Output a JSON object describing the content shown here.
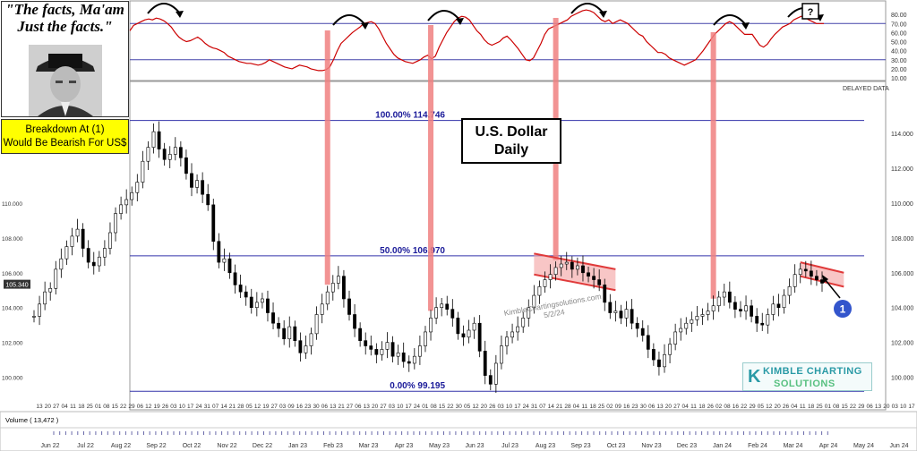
{
  "panel": {
    "title_line1": "\"The facts, Ma'am",
    "title_line2": "Just the facts.\"",
    "photo": "man-in-fedora-portrait",
    "note_line1": "Breakdown At (1)",
    "note_line2": "Would Be Bearish For US$",
    "note_color": "#ffff00"
  },
  "chart_title": {
    "line1": "U.S. Dollar",
    "line2": "Daily"
  },
  "delayed_label": "DELAYED DATA",
  "watermark": {
    "line1": "KimbleChartingsolutions.com",
    "line2": "5/2/24"
  },
  "logo": {
    "line1": "KIMBLE CHARTING",
    "line2": "SOLUTIONS",
    "mark": "K"
  },
  "volume_label": "Volume ( 13,472 )",
  "colors": {
    "price": "#000000",
    "indicator": "#cc0000",
    "fib": "#3333aa",
    "highlight": "#f08080",
    "marker": "#3355cc"
  },
  "chart_data": [
    {
      "type": "line",
      "panel": "momentum-indicator",
      "ylim": [
        10,
        90
      ],
      "y_ticks": [
        "80.00",
        "70.00",
        "60.00",
        "50.00",
        "40.00",
        "30.00",
        "20.00",
        "10.00"
      ],
      "reference_lines": [
        70,
        30
      ],
      "series": [
        {
          "values": [
            62,
            68,
            70,
            72,
            74,
            75,
            74,
            76,
            75,
            73,
            70,
            66,
            60,
            55,
            52,
            50,
            51,
            53,
            55,
            52,
            48,
            45,
            43,
            42,
            40,
            38,
            34,
            32,
            30,
            28,
            27,
            26,
            26,
            25,
            24,
            25,
            27,
            30,
            28,
            26,
            24,
            22,
            21,
            20,
            22,
            24,
            23,
            22,
            20,
            19,
            18,
            18,
            19,
            22,
            30,
            40,
            48,
            52,
            56,
            60,
            63,
            66,
            70,
            71,
            72,
            70,
            64,
            56,
            48,
            42,
            36,
            32,
            30,
            28,
            27,
            26,
            28,
            30,
            33,
            35,
            31,
            34,
            44,
            52,
            60,
            66,
            72,
            76,
            78,
            77,
            74,
            68,
            62,
            58,
            52,
            48,
            46,
            48,
            50,
            54,
            56,
            52,
            47,
            42,
            36,
            30,
            29,
            32,
            40,
            48,
            58,
            64,
            66,
            68,
            70,
            72,
            74,
            78,
            80,
            82,
            84,
            85,
            84,
            82,
            78,
            74,
            72,
            74,
            70,
            72,
            74,
            72,
            70,
            66,
            62,
            58,
            56,
            50,
            46,
            42,
            38,
            38,
            36,
            32,
            30,
            28,
            26,
            24,
            26,
            28,
            30,
            35,
            40,
            46,
            52,
            58,
            62,
            66,
            70,
            72,
            70,
            66,
            62,
            58,
            58,
            58,
            52,
            46,
            44,
            47,
            53,
            58,
            62,
            66,
            68,
            70,
            74,
            76,
            78,
            77,
            74,
            72,
            70,
            70,
            70
          ]
        }
      ],
      "annotations": [
        "?"
      ]
    },
    {
      "type": "candlestick",
      "panel": "price",
      "title": "U.S. Dollar Daily",
      "ylim": [
        99,
        115.7
      ],
      "y_ticks": [
        "114.000",
        "112.000",
        "110.000",
        "108.000",
        "106.000",
        "104.000",
        "102.000",
        "100.000"
      ],
      "last_price": "105.340",
      "fib_levels": [
        {
          "label": "100.00% 114.746",
          "value": 114.746
        },
        {
          "label": "50.00% 106.970",
          "value": 106.97
        },
        {
          "label": "0.00% 99.195",
          "value": 99.195
        }
      ],
      "highlight_peaks": [
        "Mar 23",
        "Jun 23",
        "Oct 23",
        "Feb 24"
      ],
      "channels": [
        "Sep 23 - Nov 23",
        "Apr 24 - May 24"
      ],
      "marker": "1",
      "x_month_labels": [
        "Jun 22",
        "Jul 22",
        "Aug 22",
        "Sep 22",
        "Oct 22",
        "Nov 22",
        "Dec 22",
        "Jan 23",
        "Feb 23",
        "Mar 23",
        "Apr 23",
        "May 23",
        "Jun 23",
        "Jul 23",
        "Aug 23",
        "Sep 23",
        "Oct 23",
        "Nov 23",
        "Dec 23",
        "Jan 24",
        "Feb 24",
        "Mar 24",
        "Apr 24",
        "May 24",
        "Jun 24"
      ],
      "x_day_labels": [
        "13",
        "20",
        "27",
        "04",
        "11",
        "18",
        "25",
        "01",
        "08",
        "15",
        "22",
        "29",
        "06",
        "12",
        "19",
        "26",
        "03",
        "10",
        "17",
        "24",
        "31",
        "07",
        "14",
        "21",
        "28",
        "05",
        "12",
        "19",
        "27",
        "03",
        "09",
        "16",
        "23",
        "30",
        "06",
        "13",
        "21",
        "27",
        "06",
        "13",
        "20",
        "27",
        "03",
        "10",
        "17",
        "24",
        "01",
        "08",
        "15",
        "22",
        "30",
        "05",
        "12",
        "20",
        "26",
        "03",
        "10",
        "17",
        "24",
        "31",
        "07",
        "14",
        "21",
        "28",
        "04",
        "11",
        "18",
        "25",
        "02",
        "09",
        "16",
        "23",
        "30",
        "06",
        "13",
        "20",
        "27",
        "04",
        "11",
        "18",
        "26",
        "02",
        "08",
        "16",
        "22",
        "29",
        "05",
        "12",
        "20",
        "26",
        "04",
        "11",
        "18",
        "25",
        "01",
        "08",
        "15",
        "22",
        "29",
        "06",
        "13",
        "20",
        "03",
        "10",
        "17"
      ],
      "series": [
        {
          "name": "close",
          "values": [
            103.5,
            104.2,
            104.9,
            105.1,
            106.2,
            106.8,
            107.5,
            108.1,
            108.5,
            107.4,
            106.6,
            106.4,
            106.9,
            107.4,
            108.3,
            109.4,
            109.9,
            110.2,
            110.6,
            111.2,
            112.4,
            113.2,
            114.1,
            113.1,
            112.5,
            112.8,
            113.2,
            112.6,
            111.7,
            110.9,
            111.3,
            110.5,
            109.9,
            107.8,
            106.6,
            106.8,
            106.0,
            105.3,
            104.9,
            104.6,
            104.0,
            104.3,
            104.5,
            103.7,
            103.1,
            102.8,
            102.2,
            102.9,
            102.1,
            101.4,
            101.8,
            102.5,
            103.6,
            104.2,
            104.9,
            105.4,
            105.8,
            104.5,
            103.6,
            102.8,
            102.1,
            101.8,
            101.6,
            101.3,
            101.6,
            102.0,
            101.2,
            101.4,
            100.9,
            100.8,
            101.2,
            101.8,
            102.6,
            103.4,
            104.0,
            104.2,
            103.9,
            103.4,
            102.5,
            102.3,
            102.7,
            103.1,
            101.5,
            100.1,
            99.6,
            100.8,
            101.8,
            102.3,
            102.6,
            102.9,
            103.4,
            104.0,
            104.7,
            105.2,
            105.6,
            105.9,
            106.3,
            106.5,
            106.6,
            106.2,
            106.4,
            106.0,
            105.8,
            105.6,
            105.3,
            104.3,
            103.7,
            103.8,
            103.4,
            103.9,
            103.1,
            102.8,
            102.4,
            101.6,
            101.0,
            100.6,
            101.3,
            101.9,
            102.6,
            102.8,
            103.1,
            103.3,
            103.5,
            103.6,
            103.8,
            104.1,
            104.6,
            104.9,
            104.3,
            103.9,
            103.8,
            104.1,
            103.5,
            103.1,
            103.0,
            103.6,
            104.2,
            104.0,
            104.7,
            105.2,
            105.9,
            106.2,
            106.1,
            105.8,
            105.6,
            105.4
          ]
        }
      ]
    }
  ]
}
